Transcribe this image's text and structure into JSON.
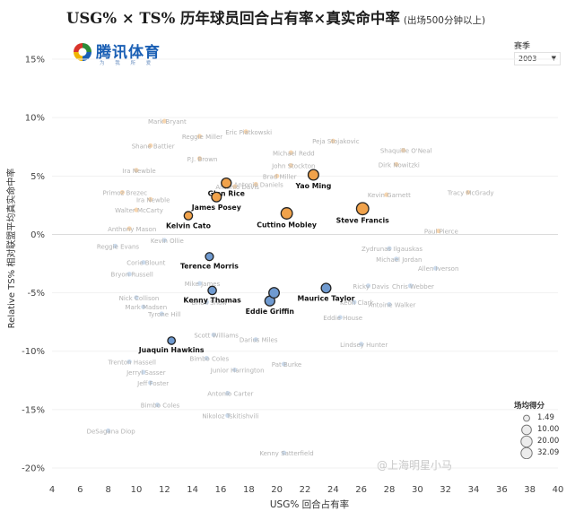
{
  "header": {
    "title": "USG% × TS% 历年球员回合占有率×真实命中率",
    "subtitle": "(出场500分钟以上)"
  },
  "logo": {
    "text": "腾讯体育",
    "sub": "为 我 所 爱"
  },
  "filter": {
    "label": "赛季",
    "value": "2003"
  },
  "legend": {
    "title": "场均得分",
    "items": [
      {
        "label": "1.49",
        "value": 1.49
      },
      {
        "label": "10.00",
        "value": 10.0
      },
      {
        "label": "20.00",
        "value": 20.0
      },
      {
        "label": "32.09",
        "value": 32.09
      }
    ]
  },
  "watermark": "@上海明星小马",
  "colors": {
    "orange": "#f0a24b",
    "blue": "#6f9ad0",
    "faded_orange": "#f7d3a8",
    "faded_blue": "#c6d8ec",
    "label": "#111111",
    "faded_label": "#b3b3b3",
    "axis": "#444444"
  },
  "chart_data": {
    "type": "scatter",
    "xlabel": "USG% 回合占有率",
    "ylabel": "Relative TS% 相对联盟平均真实命中率",
    "xlim": [
      4,
      40
    ],
    "ylim": [
      -21,
      17
    ],
    "xticks": [
      4,
      6,
      8,
      10,
      12,
      14,
      16,
      18,
      20,
      22,
      24,
      26,
      28,
      30,
      32,
      34,
      36,
      38,
      40
    ],
    "yticks": [
      {
        "value": 15,
        "label": "15%"
      },
      {
        "value": 10,
        "label": "10%"
      },
      {
        "value": 5,
        "label": "5%"
      },
      {
        "value": 0,
        "label": "0%"
      },
      {
        "value": -5,
        "label": "-5%"
      },
      {
        "value": -10,
        "label": "-10%"
      },
      {
        "value": -15,
        "label": "-15%"
      },
      {
        "value": -20,
        "label": "-20%"
      }
    ],
    "size_encoding": "场均得分",
    "color_encoding": "Relative TS% (orange above 0, blue below 0)",
    "highlighted": [
      {
        "name": "Glen Rice",
        "x": 16.4,
        "y": 4.4,
        "pts": 11
      },
      {
        "name": "Yao Ming",
        "x": 22.6,
        "y": 5.1,
        "pts": 13.5
      },
      {
        "name": "James Posey",
        "x": 15.7,
        "y": 3.2,
        "pts": 10
      },
      {
        "name": "Kelvin Cato",
        "x": 13.7,
        "y": 1.6,
        "pts": 6
      },
      {
        "name": "Cuttino Mobley",
        "x": 20.7,
        "y": 1.8,
        "pts": 17
      },
      {
        "name": "Steve Francis",
        "x": 26.1,
        "y": 2.2,
        "pts": 21
      },
      {
        "name": "Terence Morris",
        "x": 15.2,
        "y": -1.9,
        "pts": 5
      },
      {
        "name": "Kenny Thomas",
        "x": 15.4,
        "y": -4.8,
        "pts": 6
      },
      {
        "name": "Eddie Griffin",
        "x": 19.5,
        "y": -5.7,
        "pts": 11
      },
      {
        "name": "Maurice Taylor",
        "x": 23.5,
        "y": -4.6,
        "pts": 10
      },
      {
        "name": "Juaquin Hawkins",
        "x": 12.5,
        "y": -9.1,
        "pts": 4
      },
      {
        "name": "",
        "x": 19.8,
        "y": -5.0,
        "pts": 13
      }
    ],
    "faded": [
      {
        "name": "Mark Bryant",
        "x": 12.0,
        "y": 9.7
      },
      {
        "name": "Reggie Miller",
        "x": 14.5,
        "y": 8.4
      },
      {
        "name": "Eric Piatkowski",
        "x": 17.8,
        "y": 8.8
      },
      {
        "name": "Peja Stojakovic",
        "x": 24.0,
        "y": 8.0
      },
      {
        "name": "Shane Battier",
        "x": 11.0,
        "y": 7.6
      },
      {
        "name": "Shaquille O'Neal",
        "x": 29.0,
        "y": 7.2
      },
      {
        "name": "Michael Redd",
        "x": 21.0,
        "y": 7.0
      },
      {
        "name": "P.J. Brown",
        "x": 14.5,
        "y": 6.5
      },
      {
        "name": "Dirk Nowitzki",
        "x": 28.5,
        "y": 6.0
      },
      {
        "name": "John Stockton",
        "x": 21.0,
        "y": 5.9
      },
      {
        "name": "Ira Newble",
        "x": 10.0,
        "y": 5.5
      },
      {
        "name": "Brad Miller",
        "x": 20.0,
        "y": 5.0
      },
      {
        "name": "Antonio Daniels",
        "x": 18.5,
        "y": 4.3
      },
      {
        "name": "Antonio Davis",
        "x": 17.0,
        "y": 4.1
      },
      {
        "name": "Primoz Brezec",
        "x": 9.0,
        "y": 3.6
      },
      {
        "name": "Ira Newble",
        "x": 11.0,
        "y": 3.0
      },
      {
        "name": "Kevin Garnett",
        "x": 27.8,
        "y": 3.4
      },
      {
        "name": "Tracy McGrady",
        "x": 33.6,
        "y": 3.6
      },
      {
        "name": "Walter McCarty",
        "x": 10.0,
        "y": 2.1
      },
      {
        "name": "Anthony Mason",
        "x": 9.5,
        "y": 0.5
      },
      {
        "name": "Kevin Ollie",
        "x": 12.0,
        "y": -0.5
      },
      {
        "name": "Paul Pierce",
        "x": 31.5,
        "y": 0.3
      },
      {
        "name": "Reggie Evans",
        "x": 8.5,
        "y": -1.0
      },
      {
        "name": "Zydrunas Ilgauskas",
        "x": 28.0,
        "y": -1.2
      },
      {
        "name": "Michael Jordan",
        "x": 28.5,
        "y": -2.1
      },
      {
        "name": "Corie Blount",
        "x": 10.5,
        "y": -2.4
      },
      {
        "name": "Allen Iverson",
        "x": 31.3,
        "y": -2.9
      },
      {
        "name": "Bryon Russell",
        "x": 9.5,
        "y": -3.4
      },
      {
        "name": "Ricky Davis",
        "x": 26.5,
        "y": -4.4
      },
      {
        "name": "Chris Webber",
        "x": 29.5,
        "y": -4.4
      },
      {
        "name": "Mike James",
        "x": 14.5,
        "y": -4.2
      },
      {
        "name": "Nick Collison",
        "x": 10.0,
        "y": -5.4
      },
      {
        "name": "Brian Shaw",
        "x": 15.0,
        "y": -5.8
      },
      {
        "name": "Keon Clark",
        "x": 25.5,
        "y": -5.8
      },
      {
        "name": "Mark Madsen",
        "x": 10.5,
        "y": -6.2
      },
      {
        "name": "Antoine Walker",
        "x": 28.0,
        "y": -6.0
      },
      {
        "name": "Tyrone Hill",
        "x": 11.8,
        "y": -6.8
      },
      {
        "name": "Eddie House",
        "x": 24.5,
        "y": -7.1
      },
      {
        "name": "Scott Williams",
        "x": 15.5,
        "y": -8.6
      },
      {
        "name": "Darius Miles",
        "x": 18.5,
        "y": -9.0
      },
      {
        "name": "Lindsey Hunter",
        "x": 26.0,
        "y": -9.4
      },
      {
        "name": "Trenton Hassell",
        "x": 9.5,
        "y": -10.9
      },
      {
        "name": "Bimbo Coles",
        "x": 15.0,
        "y": -10.6
      },
      {
        "name": "Pat Burke",
        "x": 20.5,
        "y": -11.1
      },
      {
        "name": "Jerryl Sasser",
        "x": 10.5,
        "y": -11.8
      },
      {
        "name": "Junior Harrington",
        "x": 17.0,
        "y": -11.6
      },
      {
        "name": "Jeff Foster",
        "x": 11.0,
        "y": -12.7
      },
      {
        "name": "Antonio Carter",
        "x": 16.5,
        "y": -13.6
      },
      {
        "name": "Bimbo Coles",
        "x": 11.5,
        "y": -14.6
      },
      {
        "name": "Nikoloz Tskitishvili",
        "x": 16.5,
        "y": -15.5
      },
      {
        "name": "DeSagana Diop",
        "x": 8.0,
        "y": -16.8
      },
      {
        "name": "Kenny Satterfield",
        "x": 20.5,
        "y": -18.7
      }
    ]
  }
}
